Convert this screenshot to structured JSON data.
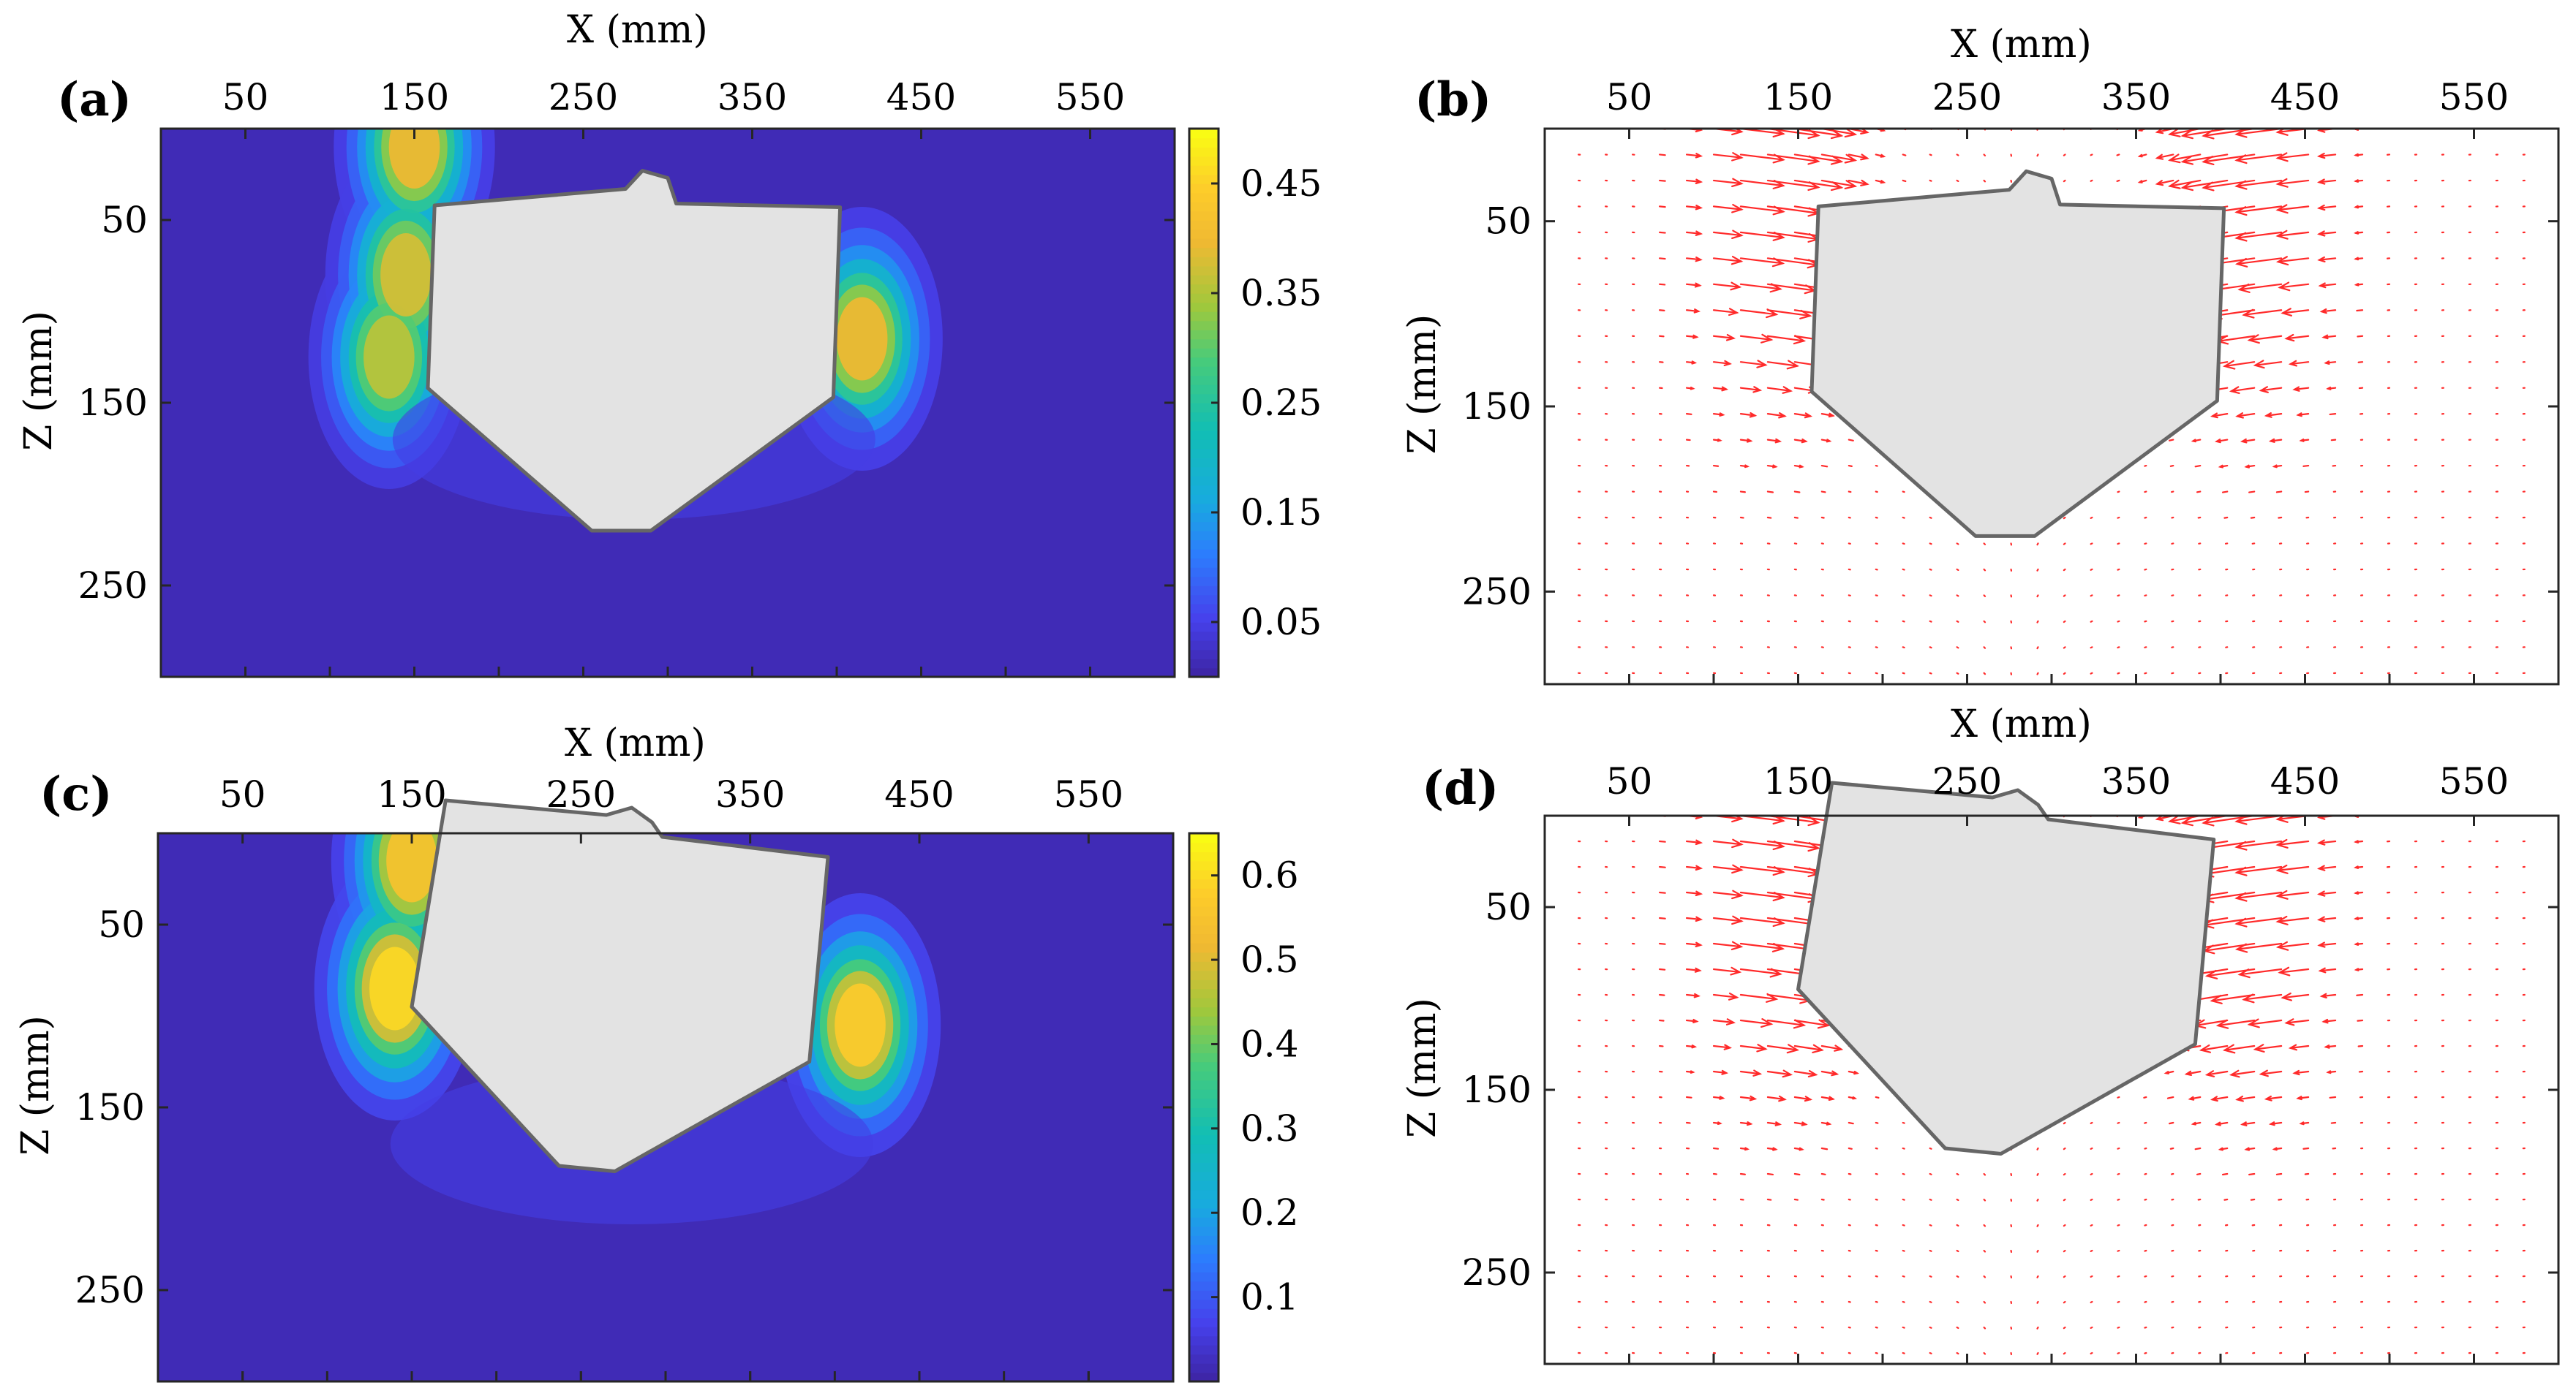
{
  "chart_data": [
    {
      "type": "heatmap",
      "panel_label": "(a)",
      "xlabel": "X (mm)",
      "ylabel": "Z (mm)",
      "xlim": [
        0,
        600
      ],
      "ylim": [
        0,
        300
      ],
      "x_ticks": [
        "50",
        "150",
        "250",
        "350",
        "450",
        "550"
      ],
      "y_ticks": [
        "50",
        "150",
        "250"
      ],
      "colorbar": {
        "range": [
          0,
          0.5
        ],
        "ticks": [
          "0.45",
          "0.35",
          "0.25",
          "0.15",
          "0.05"
        ]
      },
      "hotspots": [
        {
          "name": "left upper",
          "x": 150,
          "z": 10,
          "value": 0.4
        },
        {
          "name": "left mid",
          "x": 145,
          "z": 80,
          "value": 0.38
        },
        {
          "name": "left lower",
          "x": 135,
          "z": 125,
          "value": 0.36
        },
        {
          "name": "right",
          "x": 415,
          "z": 115,
          "value": 0.4
        }
      ],
      "object_outline": [
        [
          162,
          42
        ],
        [
          275,
          33
        ],
        [
          285,
          23
        ],
        [
          300,
          27
        ],
        [
          305,
          41
        ],
        [
          402,
          43
        ],
        [
          398,
          147
        ],
        [
          290,
          220
        ],
        [
          255,
          220
        ],
        [
          158,
          142
        ]
      ],
      "object_fill": "#e3e3e3"
    },
    {
      "type": "quiver",
      "panel_label": "(b)",
      "xlabel": "X (mm)",
      "ylabel": "Z (mm)",
      "xlim": [
        0,
        600
      ],
      "ylim": [
        0,
        300
      ],
      "x_ticks": [
        "50",
        "150",
        "250",
        "350",
        "450",
        "550"
      ],
      "y_ticks": [
        "50",
        "150",
        "250"
      ],
      "arrow_color": "#ff2a2a",
      "flow": "downward-inward toward object sides",
      "object_outline": [
        [
          162,
          42
        ],
        [
          275,
          33
        ],
        [
          285,
          23
        ],
        [
          300,
          27
        ],
        [
          305,
          41
        ],
        [
          402,
          43
        ],
        [
          398,
          147
        ],
        [
          290,
          220
        ],
        [
          255,
          220
        ],
        [
          158,
          142
        ]
      ],
      "object_fill": "#e3e3e3"
    },
    {
      "type": "heatmap",
      "panel_label": "(c)",
      "xlabel": "X (mm)",
      "ylabel": "Z (mm)",
      "xlim": [
        0,
        600
      ],
      "ylim": [
        0,
        300
      ],
      "x_ticks": [
        "50",
        "150",
        "250",
        "350",
        "450",
        "550"
      ],
      "y_ticks": [
        "50",
        "150",
        "250"
      ],
      "colorbar": {
        "range": [
          0,
          0.65
        ],
        "ticks": [
          "0.6",
          "0.5",
          "0.4",
          "0.3",
          "0.2",
          "0.1"
        ]
      },
      "hotspots": [
        {
          "name": "left upper",
          "x": 150,
          "z": 15,
          "value": 0.55
        },
        {
          "name": "left mid",
          "x": 140,
          "z": 85,
          "value": 0.6
        },
        {
          "name": "right",
          "x": 415,
          "z": 105,
          "value": 0.58
        }
      ],
      "object_outline": [
        [
          170,
          -18
        ],
        [
          265,
          -10
        ],
        [
          280,
          -14
        ],
        [
          292,
          -6
        ],
        [
          298,
          2
        ],
        [
          396,
          13
        ],
        [
          385,
          125
        ],
        [
          270,
          185
        ],
        [
          237,
          182
        ],
        [
          150,
          95
        ]
      ],
      "object_fill": "#e3e3e3"
    },
    {
      "type": "quiver",
      "panel_label": "(d)",
      "xlabel": "X (mm)",
      "ylabel": "Z (mm)",
      "xlim": [
        0,
        600
      ],
      "ylim": [
        0,
        300
      ],
      "x_ticks": [
        "50",
        "150",
        "250",
        "350",
        "450",
        "550"
      ],
      "y_ticks": [
        "50",
        "150",
        "250"
      ],
      "arrow_color": "#ff2a2a",
      "flow": "downward-inward toward object sides",
      "object_outline": [
        [
          170,
          -18
        ],
        [
          265,
          -10
        ],
        [
          280,
          -14
        ],
        [
          292,
          -6
        ],
        [
          298,
          2
        ],
        [
          396,
          13
        ],
        [
          385,
          125
        ],
        [
          270,
          185
        ],
        [
          237,
          182
        ],
        [
          150,
          95
        ]
      ],
      "object_fill": "#e3e3e3"
    }
  ]
}
